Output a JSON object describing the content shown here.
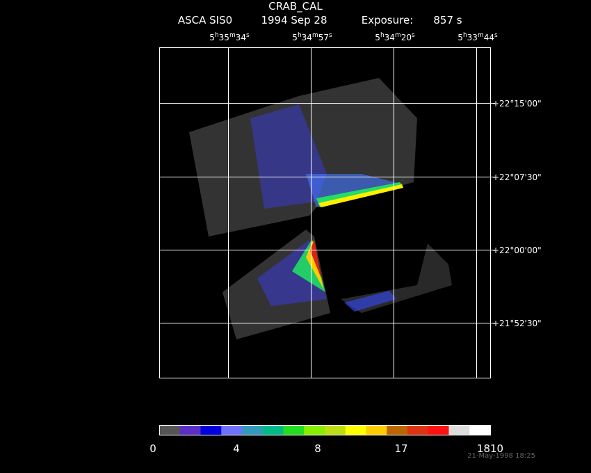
{
  "header": {
    "title": "CRAB_CAL",
    "subtitle": [
      "ASCA SIS0",
      "1994 Sep 28",
      "Exposure:",
      "857 s"
    ]
  },
  "ra_labels": [
    [
      "5",
      "h",
      "35",
      "m",
      "34",
      "s"
    ],
    [
      "5",
      "h",
      "34",
      "m",
      "57",
      "s"
    ],
    [
      "5",
      "h",
      "34",
      "m",
      "20",
      "s"
    ],
    [
      "5",
      "h",
      "33",
      "m",
      "44",
      "s"
    ]
  ],
  "dec_labels": [
    "+22°15'00\"",
    "+22°07'30\"",
    "+22°00'00\"",
    "+21°52'30\""
  ],
  "colorbar": {
    "colors": [
      "#555555",
      "#5b2fc6",
      "#0000dd",
      "#7070ff",
      "#3399bb",
      "#00bb88",
      "#22dd22",
      "#88ee00",
      "#bbdd11",
      "#ffff00",
      "#ffcc00",
      "#bb6600",
      "#dd3311",
      "#ff1111",
      "#dddddd",
      "#ffffff"
    ],
    "labels": [
      0,
      4,
      8,
      17,
      1810
    ]
  },
  "footer": {
    "timestamp": "21-May-1998 18:25"
  }
}
